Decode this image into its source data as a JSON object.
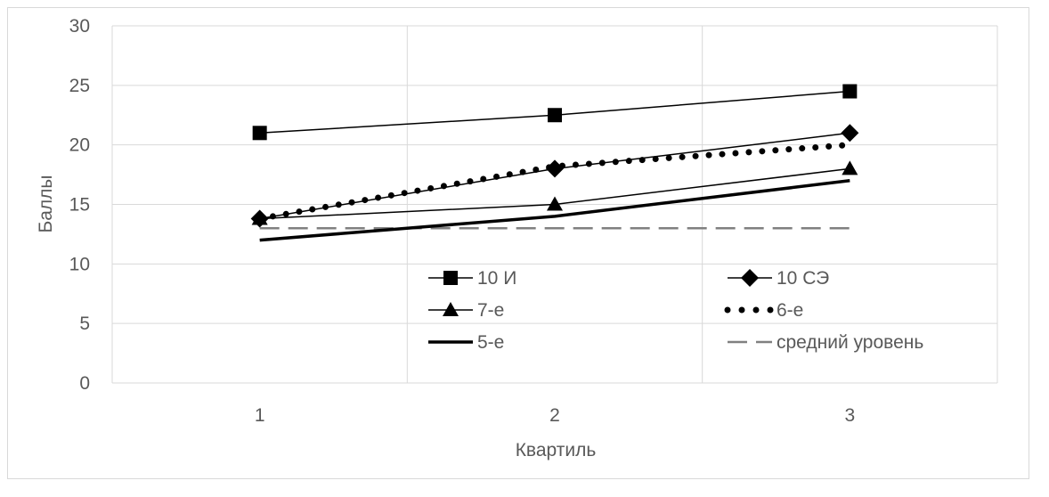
{
  "chart_data": {
    "type": "line",
    "title": "",
    "xlabel": "Квартиль",
    "ylabel": "Баллы",
    "categories": [
      "1",
      "2",
      "3"
    ],
    "ylim": [
      0,
      30
    ],
    "yticks": [
      0,
      5,
      10,
      15,
      20,
      25,
      30
    ],
    "grid": true,
    "legend_position": "inside-bottom",
    "series": [
      {
        "name": "10 И",
        "values": [
          21,
          22.5,
          24.5
        ],
        "marker": "square",
        "line": "solid-thin",
        "color": "#000000"
      },
      {
        "name": "10 СЭ",
        "values": [
          13.8,
          18,
          21
        ],
        "marker": "diamond",
        "line": "solid-thin",
        "color": "#000000"
      },
      {
        "name": "7-е",
        "values": [
          13.8,
          15,
          18
        ],
        "marker": "triangle",
        "line": "solid-thin",
        "color": "#000000"
      },
      {
        "name": "6-е",
        "values": [
          13.8,
          18.2,
          20
        ],
        "marker": "none",
        "line": "round-dots",
        "color": "#000000"
      },
      {
        "name": "5-е",
        "values": [
          12,
          14,
          17
        ],
        "marker": "none",
        "line": "solid-thick",
        "color": "#000000"
      },
      {
        "name": "средний уровень",
        "values": [
          13,
          13,
          13
        ],
        "marker": "none",
        "line": "dashed",
        "color": "#808080"
      }
    ]
  }
}
